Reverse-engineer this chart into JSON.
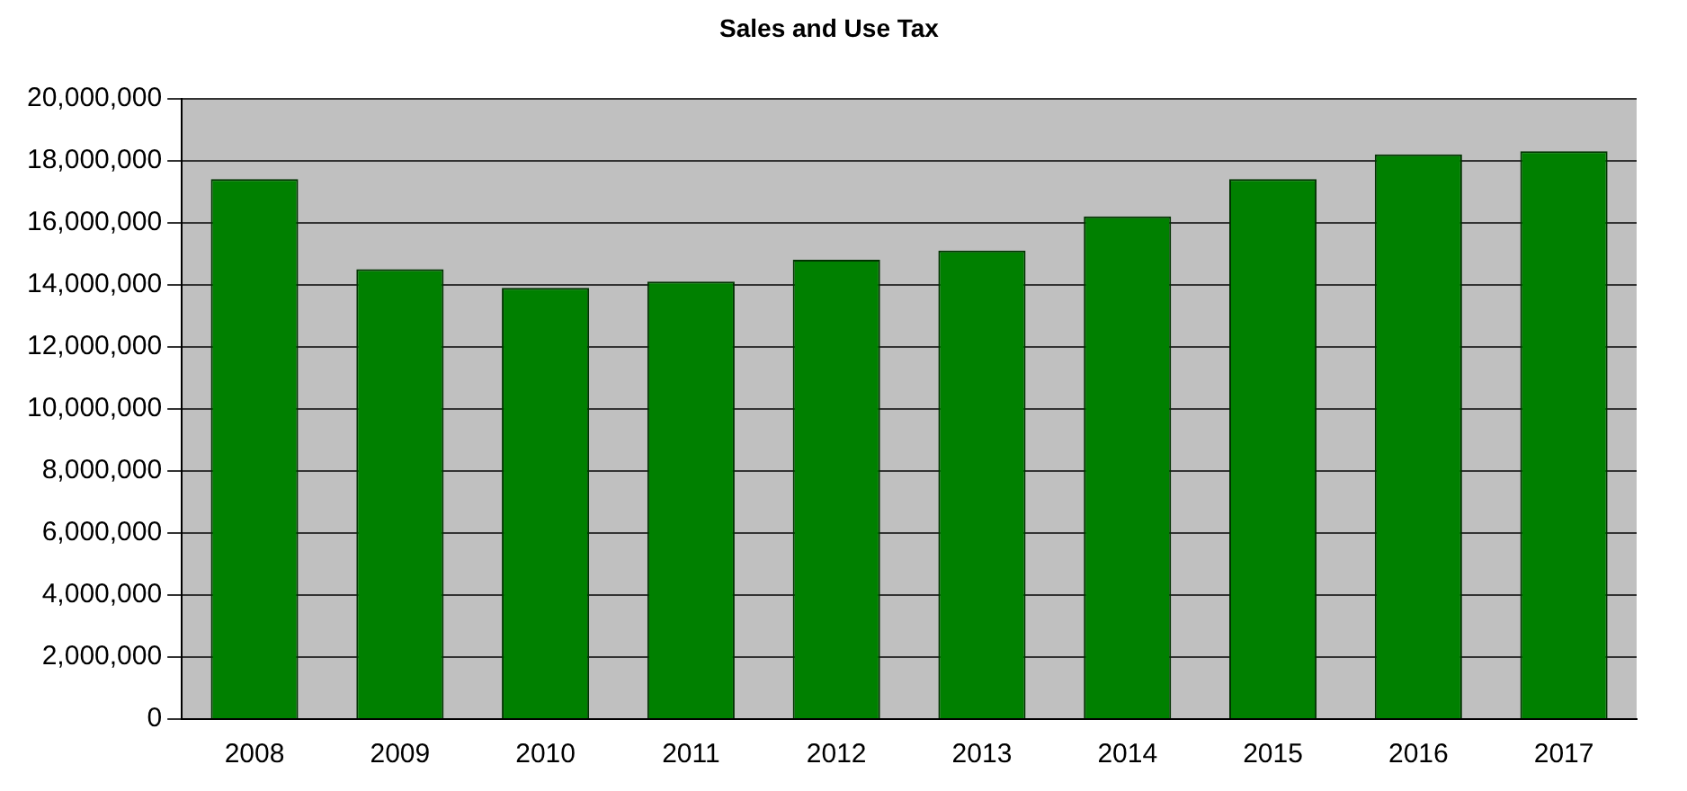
{
  "chart_data": {
    "type": "bar",
    "title": "Sales and Use Tax",
    "categories": [
      "2008",
      "2009",
      "2010",
      "2011",
      "2012",
      "2013",
      "2014",
      "2015",
      "2016",
      "2017"
    ],
    "values": [
      17400000,
      14500000,
      13900000,
      14100000,
      14800000,
      15100000,
      16200000,
      17400000,
      18200000,
      18300000
    ],
    "color": "#008000",
    "ylim": [
      0,
      20000000
    ],
    "yticks": [
      0,
      {
        "value": 2000000,
        "label": "2,000,000"
      },
      {
        "value": 4000000,
        "label": "4,000,000"
      },
      {
        "value": 6000000,
        "label": "6,000,000"
      },
      {
        "value": 8000000,
        "label": "8,000,000"
      },
      {
        "value": 10000000,
        "label": "10,000,000"
      },
      {
        "value": 12000000,
        "label": "12,000,000"
      },
      {
        "value": 14000000,
        "label": "14,000,000"
      },
      {
        "value": 16000000,
        "label": "16,000,000"
      },
      {
        "value": 18000000,
        "label": "18,000,000"
      },
      {
        "value": 20000000,
        "label": "20,000,000"
      }
    ],
    "grid": "y",
    "legend": false
  }
}
